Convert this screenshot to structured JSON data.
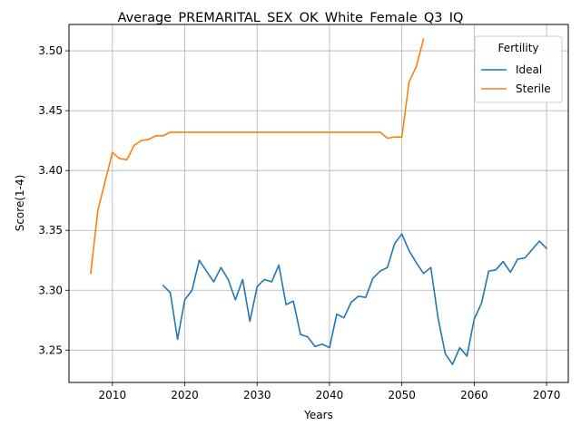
{
  "chart_data": {
    "type": "line",
    "title": "Average_PREMARITAL_SEX_OK_White_Female_Q3_IQ",
    "xlabel": "Years",
    "ylabel": "Score(1-4)",
    "xlim": [
      2004,
      2073
    ],
    "ylim": [
      3.223,
      3.522
    ],
    "x_ticks": [
      2010,
      2020,
      2030,
      2040,
      2050,
      2060,
      2070
    ],
    "y_ticks": [
      3.25,
      3.3,
      3.35,
      3.4,
      3.45,
      3.5
    ],
    "y_tick_labels": [
      "3.25",
      "3.30",
      "3.35",
      "3.40",
      "3.45",
      "3.50"
    ],
    "grid": true,
    "legend": {
      "title": "Fertility",
      "placement": "top-right"
    },
    "series": [
      {
        "name": "Ideal",
        "color": "#1f77b4",
        "x": [
          2017,
          2018,
          2019,
          2020,
          2021,
          2022,
          2023,
          2024,
          2025,
          2026,
          2027,
          2028,
          2029,
          2030,
          2031,
          2032,
          2033,
          2034,
          2035,
          2036,
          2037,
          2038,
          2039,
          2040,
          2041,
          2042,
          2043,
          2044,
          2045,
          2046,
          2047,
          2048,
          2049,
          2050,
          2051,
          2052,
          2053,
          2054,
          2055,
          2056,
          2057,
          2058,
          2059,
          2060,
          2061,
          2062,
          2063,
          2064,
          2065,
          2066,
          2067,
          2068,
          2069,
          2070
        ],
        "values": [
          3.304,
          3.298,
          3.259,
          3.292,
          3.3,
          3.325,
          3.316,
          3.307,
          3.319,
          3.309,
          3.292,
          3.309,
          3.274,
          3.303,
          3.309,
          3.307,
          3.321,
          3.288,
          3.291,
          3.263,
          3.261,
          3.253,
          3.255,
          3.252,
          3.28,
          3.277,
          3.29,
          3.295,
          3.294,
          3.31,
          3.316,
          3.319,
          3.339,
          3.347,
          3.333,
          3.323,
          3.314,
          3.319,
          3.277,
          3.247,
          3.238,
          3.252,
          3.245,
          3.276,
          3.289,
          3.316,
          3.317,
          3.324,
          3.315,
          3.326,
          3.327,
          3.334,
          3.341,
          3.335
        ]
      },
      {
        "name": "Sterile",
        "color": "#ff7f0e",
        "x": [
          2007,
          2008,
          2009,
          2010,
          2011,
          2012,
          2013,
          2014,
          2015,
          2016,
          2017,
          2018,
          2019,
          2020,
          2021,
          2022,
          2023,
          2024,
          2025,
          2026,
          2027,
          2028,
          2029,
          2030,
          2031,
          2032,
          2033,
          2034,
          2035,
          2036,
          2037,
          2038,
          2039,
          2040,
          2041,
          2042,
          2043,
          2044,
          2045,
          2046,
          2047,
          2048,
          2049,
          2050,
          2051,
          2052,
          2053
        ],
        "values": [
          3.314,
          3.367,
          3.391,
          3.415,
          3.41,
          3.409,
          3.421,
          3.425,
          3.426,
          3.429,
          3.429,
          3.432,
          3.432,
          3.432,
          3.432,
          3.432,
          3.432,
          3.432,
          3.432,
          3.432,
          3.432,
          3.432,
          3.432,
          3.432,
          3.432,
          3.432,
          3.432,
          3.432,
          3.432,
          3.432,
          3.432,
          3.432,
          3.432,
          3.432,
          3.432,
          3.432,
          3.432,
          3.432,
          3.432,
          3.432,
          3.432,
          3.427,
          3.428,
          3.428,
          3.474,
          3.487,
          3.51
        ]
      }
    ]
  }
}
